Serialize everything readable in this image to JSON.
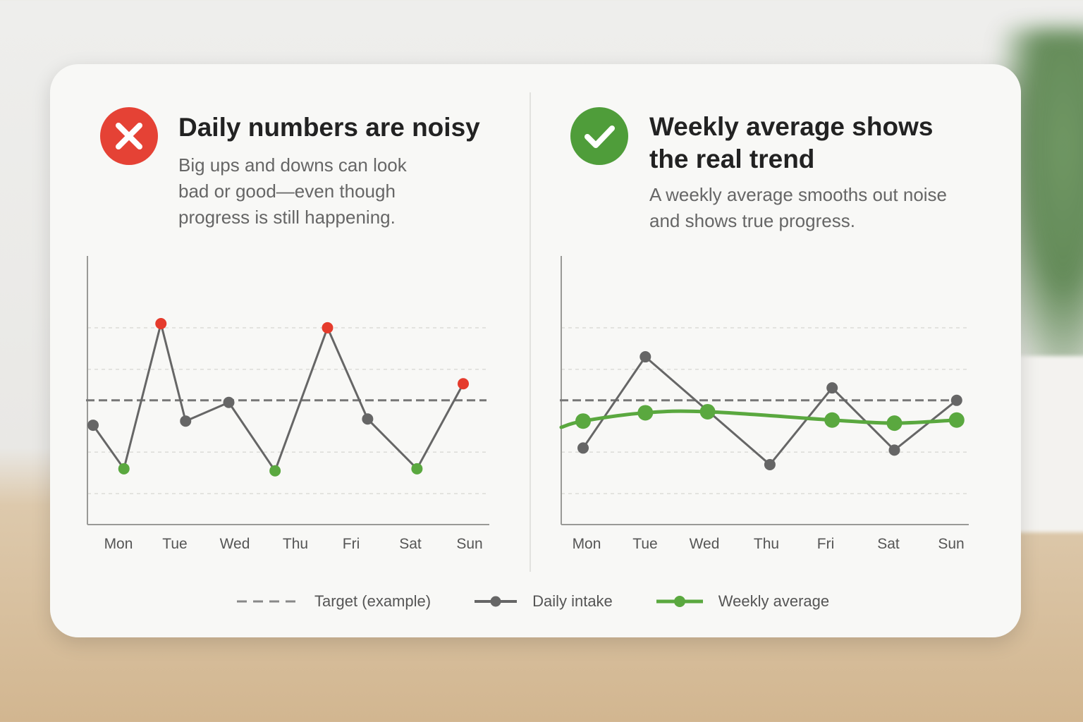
{
  "colors": {
    "bad": "#e54235",
    "good": "#4f9d3a",
    "daily_line": "#666666",
    "target_line": "#777777",
    "high_point": "#e53b2c",
    "low_point": "#5aa83f",
    "weekly_line": "#5aa83f"
  },
  "left_panel": {
    "icon": "x-mark-icon",
    "title": "Daily numbers are noisy",
    "description": "Big ups and downs can look bad or good—even though progress is still happening."
  },
  "right_panel": {
    "icon": "check-mark-icon",
    "title": "Weekly average shows the real trend",
    "description": "A weekly average smooths out noise and shows true progress."
  },
  "legend": {
    "target": "Target (example)",
    "daily": "Daily intake",
    "weekly": "Weekly average"
  },
  "chart_data": [
    {
      "type": "line",
      "categories": [
        "Mon",
        "Tue",
        "Wed",
        "Thu",
        "Fri",
        "Sat",
        "Sun"
      ],
      "ylim": [
        0,
        100
      ],
      "grid": true,
      "target": 55,
      "series": [
        {
          "name": "Daily intake",
          "points": [
            {
              "x": 0.0,
              "y": 43
            },
            {
              "x": 0.5,
              "y": 22,
              "mark": "low"
            },
            {
              "x": 1.1,
              "y": 92,
              "mark": "high"
            },
            {
              "x": 1.5,
              "y": 45
            },
            {
              "x": 2.2,
              "y": 54
            },
            {
              "x": 2.95,
              "y": 21,
              "mark": "low"
            },
            {
              "x": 3.8,
              "y": 90,
              "mark": "high"
            },
            {
              "x": 4.45,
              "y": 46
            },
            {
              "x": 5.25,
              "y": 22,
              "mark": "low"
            },
            {
              "x": 6.0,
              "y": 63,
              "mark": "high"
            }
          ]
        }
      ]
    },
    {
      "type": "line",
      "categories": [
        "Mon",
        "Tue",
        "Wed",
        "Thu",
        "Fri",
        "Sat",
        "Sun"
      ],
      "ylim": [
        0,
        100
      ],
      "grid": true,
      "target": 55,
      "series": [
        {
          "name": "Daily intake",
          "points": [
            {
              "x": 0,
              "y": 32
            },
            {
              "x": 1,
              "y": 76
            },
            {
              "x": 3,
              "y": 24
            },
            {
              "x": 4,
              "y": 61
            },
            {
              "x": 5,
              "y": 31
            },
            {
              "x": 6,
              "y": 55
            }
          ]
        },
        {
          "name": "Weekly average",
          "points": [
            {
              "x": 0,
              "y": 45
            },
            {
              "x": 1,
              "y": 49
            },
            {
              "x": 2,
              "y": 49.5
            },
            {
              "x": 4,
              "y": 45.5
            },
            {
              "x": 5,
              "y": 44
            },
            {
              "x": 6,
              "y": 45.5
            }
          ],
          "start_y": 42
        }
      ]
    }
  ]
}
